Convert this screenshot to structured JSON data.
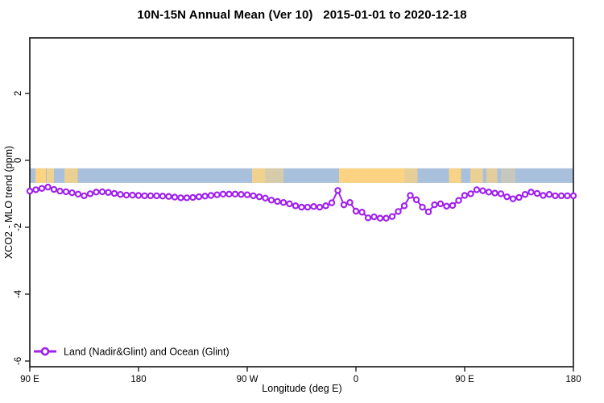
{
  "title": "10N-15N Annual Mean (Ver 10)   2015-01-01 to 2020-12-18",
  "chart_data": {
    "type": "line",
    "title": "10N-15N Annual Mean (Ver 10)   2015-01-01 to 2020-12-18",
    "xlabel": "Longitude (deg E)",
    "ylabel": "XCO2 - MLO trend (ppm)",
    "xlim": [
      90,
      540
    ],
    "ylim": [
      -6.17,
      3.66
    ],
    "grid": false,
    "x_ticks": [
      {
        "value": 90,
        "label": "90 E"
      },
      {
        "value": 180,
        "label": "180"
      },
      {
        "value": 270,
        "label": "90 W"
      },
      {
        "value": 360,
        "label": "0"
      },
      {
        "value": 450,
        "label": "90 E"
      },
      {
        "value": 540,
        "label": "180"
      }
    ],
    "y_ticks": [
      {
        "value": 2,
        "label": "2"
      },
      {
        "value": 0,
        "label": "0"
      },
      {
        "value": -2,
        "label": "-2"
      },
      {
        "value": -4,
        "label": "-4"
      },
      {
        "value": -6,
        "label": "-6"
      }
    ],
    "map_strip": {
      "description": "land-ocean strip along 10N-15N latitude band",
      "ocean_color": "#A9C0DD",
      "land_color": "#FBD382",
      "value_top": -0.24,
      "value_bottom": -0.675,
      "land_segments": [
        [
          94.7,
          103.3,
          1
        ],
        [
          104,
          110,
          0.85
        ],
        [
          118.7,
          129.7,
          0.8
        ],
        [
          274,
          285,
          0.85
        ],
        [
          285,
          300,
          0.55
        ],
        [
          346,
          400,
          1
        ],
        [
          400,
          411,
          0.75
        ],
        [
          437,
          447,
          0.95
        ],
        [
          454.7,
          465,
          0.8
        ],
        [
          468,
          477,
          0.7
        ],
        [
          480,
          492,
          0.35
        ]
      ]
    },
    "legend": {
      "position": "bottom-left",
      "entries": [
        {
          "label": "Land (Nadir&Glint) and Ocean (Glint)",
          "color": "#A020F0",
          "marker": "open-circle"
        }
      ]
    },
    "series": [
      {
        "name": "Land (Nadir&Glint) and Ocean (Glint)",
        "color": "#A020F0",
        "marker": "open-circle",
        "x": [
          90,
          95,
          100,
          105,
          110,
          115,
          120,
          125,
          130,
          135,
          140,
          145,
          150,
          155,
          160,
          165,
          170,
          175,
          180,
          185,
          190,
          195,
          200,
          205,
          210,
          215,
          220,
          225,
          230,
          235,
          240,
          245,
          250,
          255,
          260,
          265,
          270,
          275,
          280,
          285,
          290,
          295,
          300,
          305,
          310,
          315,
          320,
          325,
          330,
          335,
          340,
          345,
          350,
          355,
          360,
          365,
          370,
          375,
          380,
          385,
          390,
          395,
          400,
          405,
          410,
          415,
          420,
          425,
          430,
          435,
          440,
          445,
          450,
          455,
          460,
          465,
          470,
          475,
          480,
          485,
          490,
          495,
          500,
          505,
          510,
          515,
          520,
          525,
          530,
          535,
          540
        ],
        "values": [
          -0.92,
          -0.88,
          -0.84,
          -0.8,
          -0.87,
          -0.92,
          -0.94,
          -0.97,
          -1.01,
          -1.06,
          -1.0,
          -0.95,
          -0.94,
          -0.96,
          -0.99,
          -1.02,
          -1.04,
          -1.04,
          -1.05,
          -1.06,
          -1.06,
          -1.06,
          -1.07,
          -1.08,
          -1.1,
          -1.12,
          -1.12,
          -1.11,
          -1.09,
          -1.07,
          -1.05,
          -1.03,
          -1.01,
          -1.01,
          -1.01,
          -1.02,
          -1.03,
          -1.06,
          -1.09,
          -1.13,
          -1.19,
          -1.23,
          -1.26,
          -1.3,
          -1.36,
          -1.4,
          -1.4,
          -1.38,
          -1.4,
          -1.36,
          -1.27,
          -0.9,
          -1.33,
          -1.26,
          -1.52,
          -1.55,
          -1.72,
          -1.69,
          -1.73,
          -1.73,
          -1.68,
          -1.53,
          -1.36,
          -1.05,
          -1.18,
          -1.4,
          -1.54,
          -1.33,
          -1.3,
          -1.37,
          -1.35,
          -1.2,
          -1.05,
          -1.0,
          -0.88,
          -0.91,
          -0.95,
          -0.98,
          -1.0,
          -1.09,
          -1.15,
          -1.11,
          -1.02,
          -0.95,
          -0.99,
          -1.05,
          -1.02,
          -1.06,
          -1.06,
          -1.06,
          -1.06
        ]
      }
    ]
  }
}
